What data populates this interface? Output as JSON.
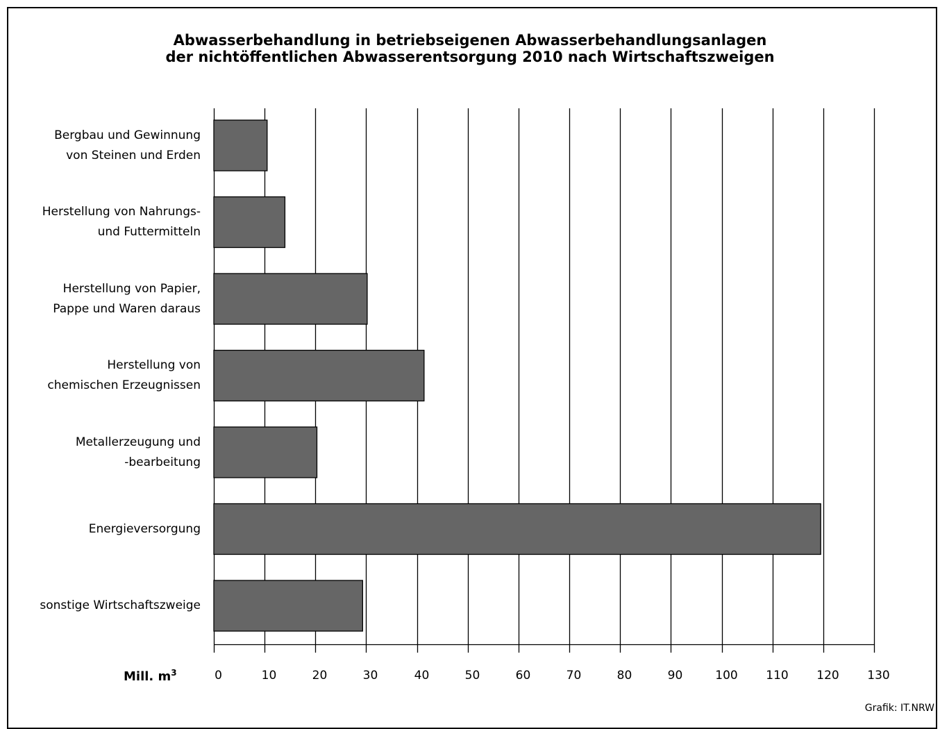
{
  "chart_data": {
    "type": "bar",
    "orientation": "horizontal",
    "title": "Abwasserbehandlung in betriebseigenen Abwasserbehandlungsanlagen der nichtöffentlichen Abwasserentsorgung 2010 nach Wirtschaftszweigen",
    "title_lines": [
      "Abwasserbehandlung in betriebseigenen Abwasserbehandlungsanlagen",
      "der nichtöffentlichen Abwasserentsorgung 2010 nach Wirtschaftszweigen"
    ],
    "categories": [
      [
        "Bergbau und Gewinnung",
        "von Steinen und Erden"
      ],
      [
        "Herstellung von Nahrungs-",
        "und Futtermitteln"
      ],
      [
        "Herstellung von Papier,",
        "Pappe und Waren daraus"
      ],
      [
        "Herstellung von",
        "chemischen Erzeugnissen"
      ],
      [
        "Metallerzeugung und",
        "-bearbeitung"
      ],
      [
        "Energieversorgung"
      ],
      [
        "sonstige Wirtschaftszweige"
      ]
    ],
    "values": [
      10.5,
      14,
      30.2,
      41.4,
      20.3,
      119.5,
      29.3
    ],
    "xlabel": "Mill. m",
    "xlabel_sup": "3",
    "xlim": [
      0,
      130
    ],
    "xticks": [
      "0",
      "10",
      "20",
      "30",
      "40",
      "50",
      "60",
      "70",
      "80",
      "90",
      "100",
      "110",
      "120",
      "130"
    ],
    "grid": true,
    "bar_color": "#666666",
    "source": "Grafik: IT.NRW"
  }
}
